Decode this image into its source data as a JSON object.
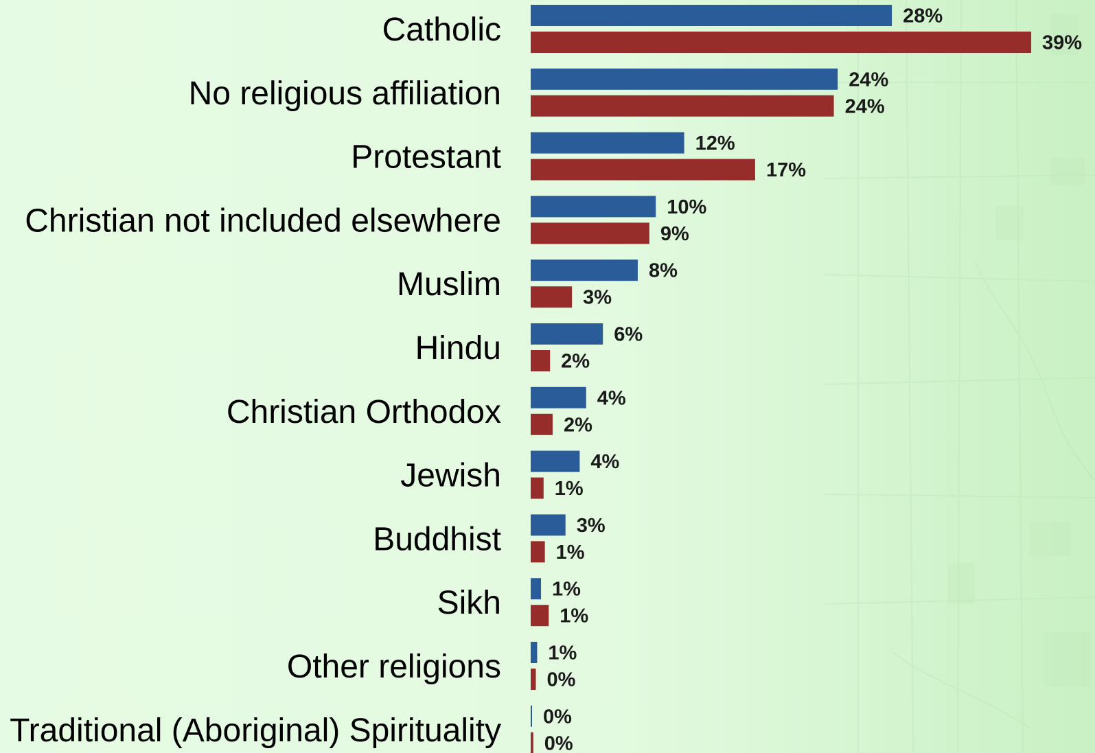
{
  "chart_data": {
    "type": "bar",
    "orientation": "horizontal",
    "categories": [
      "Catholic",
      "No religious affiliation",
      "Protestant",
      "Christian not included elsewhere",
      "Muslim",
      "Hindu",
      "Christian Orthodox",
      "Jewish",
      "Buddhist",
      "Sikh",
      "Other religions",
      "Traditional (Aboriginal) Spirituality"
    ],
    "series": [
      {
        "color": "#2b5c9a",
        "values": [
          28,
          24,
          12,
          10,
          8,
          6,
          4,
          4,
          3,
          1,
          1,
          0
        ],
        "labels": [
          "28%",
          "24%",
          "12%",
          "10%",
          "8%",
          "6%",
          "4%",
          "4%",
          "3%",
          "1%",
          "1%",
          "0%"
        ],
        "precise": [
          28,
          23.8,
          11.9,
          9.7,
          8.3,
          5.6,
          4.3,
          3.8,
          2.7,
          0.8,
          0.5,
          0.1
        ]
      },
      {
        "color": "#962d2a",
        "values": [
          39,
          24,
          17,
          9,
          3,
          2,
          2,
          1,
          1,
          1,
          0,
          0
        ],
        "labels": [
          "39%",
          "24%",
          "17%",
          "9%",
          "3%",
          "2%",
          "2%",
          "1%",
          "1%",
          "1%",
          "0%",
          "0%"
        ],
        "precise": [
          38.8,
          23.5,
          17.4,
          9.2,
          3.2,
          1.5,
          1.7,
          1.0,
          1.1,
          1.4,
          0.4,
          0.2
        ]
      }
    ],
    "xlim": [
      0,
      39
    ],
    "grid": false,
    "legend": "none",
    "title": "",
    "xlabel": "",
    "ylabel": ""
  },
  "background": {
    "style": "light green map texture",
    "colors": [
      "#e6fbe3",
      "#c9f0c4"
    ]
  }
}
